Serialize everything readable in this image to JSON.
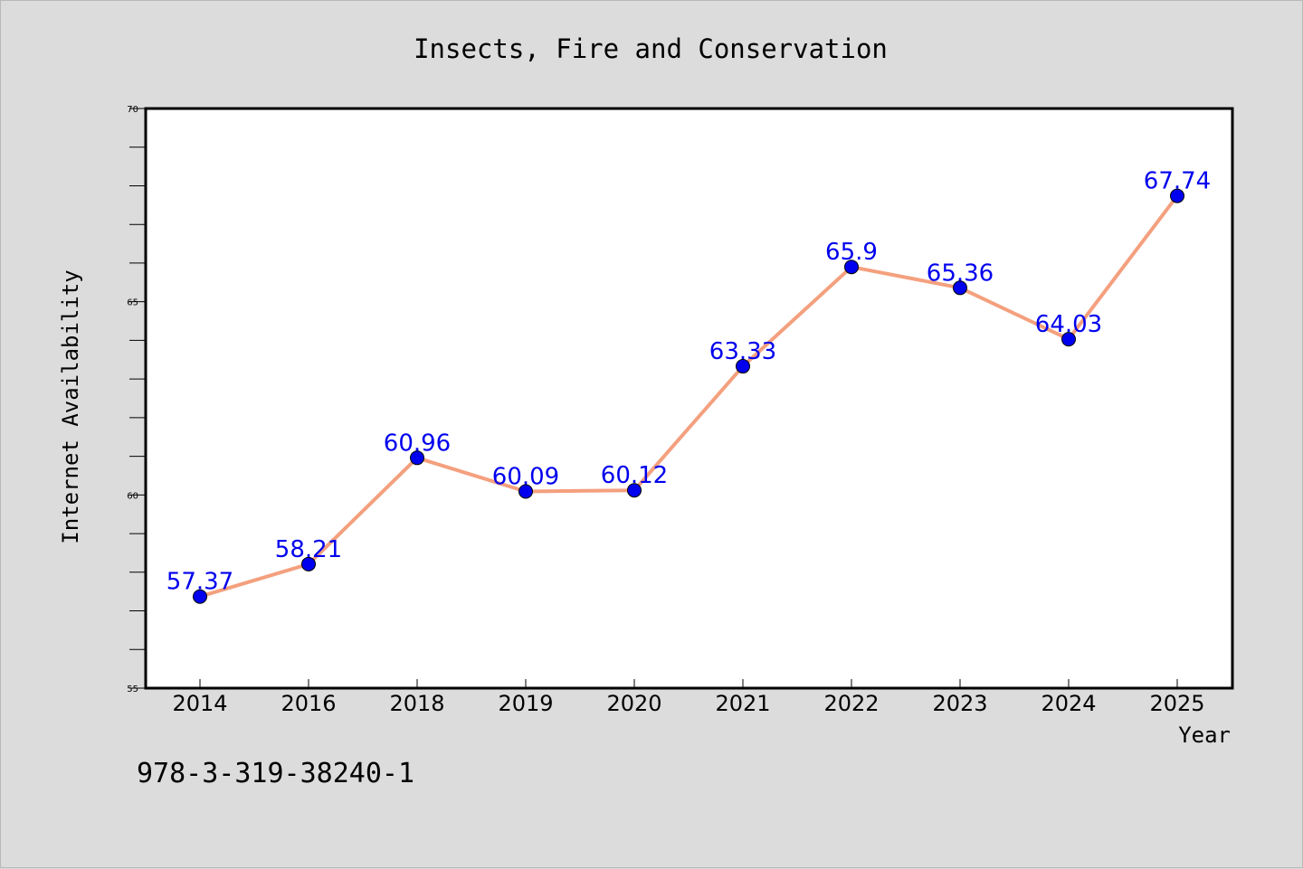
{
  "chart_data": {
    "type": "line",
    "title": "Insects, Fire and Conservation",
    "xlabel": "Year",
    "ylabel": "Internet Availability",
    "categories": [
      "2014",
      "2016",
      "2018",
      "2019",
      "2020",
      "2021",
      "2022",
      "2023",
      "2024",
      "2025"
    ],
    "values": [
      57.37,
      58.21,
      60.96,
      60.09,
      60.12,
      63.33,
      65.9,
      65.36,
      64.03,
      67.74
    ],
    "data_labels": [
      "57.37",
      "58.21",
      "60.96",
      "60.09",
      "60.12",
      "63.33",
      "65.9",
      "65.36",
      "64.03",
      "67.74"
    ],
    "ylim": [
      55,
      70
    ],
    "yticks": [
      55,
      60,
      65,
      70
    ],
    "ytick_labels": [
      "55",
      "60",
      "65",
      "70"
    ],
    "grid": false,
    "legend": "none",
    "line_color": "#f4a07e",
    "marker_color": "#0000ee",
    "label_color": "#0000ee"
  },
  "footer_text": "978-3-319-38240-1",
  "colors": {
    "background": "#dcdcdc",
    "plot_background": "#ffffff",
    "axis": "#000000"
  }
}
